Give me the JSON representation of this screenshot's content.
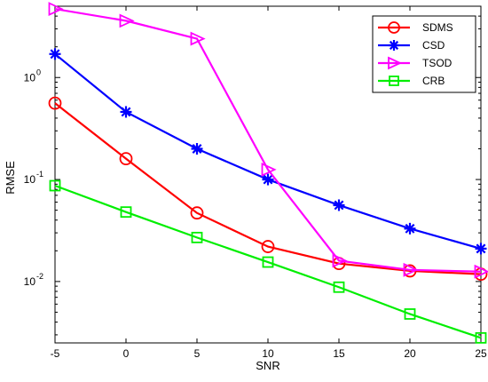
{
  "chart_data": {
    "type": "line",
    "title": "",
    "xlabel": "SNR",
    "ylabel": "RMSE",
    "xlim": [
      -5,
      25
    ],
    "ylim": [
      0.0025,
      5
    ],
    "yscale": "log",
    "grid": false,
    "legend_position": "top-right",
    "x": [
      -5,
      0,
      5,
      10,
      15,
      20,
      25
    ],
    "x_ticks": [
      "-5",
      "0",
      "5",
      "10",
      "15",
      "20",
      "25"
    ],
    "y_ticks": [
      {
        "value": 1,
        "base": "10",
        "exp": "0"
      },
      {
        "value": 0.1,
        "base": "10",
        "exp": "-1"
      },
      {
        "value": 0.01,
        "base": "10",
        "exp": "-2"
      }
    ],
    "series": [
      {
        "name": "SDMS",
        "color": "#ff0000",
        "marker": "circle",
        "values": [
          0.56,
          0.16,
          0.047,
          0.022,
          0.015,
          0.0127,
          0.0118
        ]
      },
      {
        "name": "CSD",
        "color": "#0000ff",
        "marker": "star",
        "values": [
          1.7,
          0.46,
          0.2,
          0.1,
          0.056,
          0.033,
          0.021
        ]
      },
      {
        "name": "TSOD",
        "color": "#ff00ff",
        "marker": "triangle-right",
        "values": [
          4.7,
          3.6,
          2.4,
          0.125,
          0.016,
          0.013,
          0.0125
        ]
      },
      {
        "name": "CRB",
        "color": "#00ee00",
        "marker": "square",
        "values": [
          0.087,
          0.048,
          0.027,
          0.0155,
          0.0088,
          0.0048,
          0.0028
        ]
      }
    ]
  }
}
